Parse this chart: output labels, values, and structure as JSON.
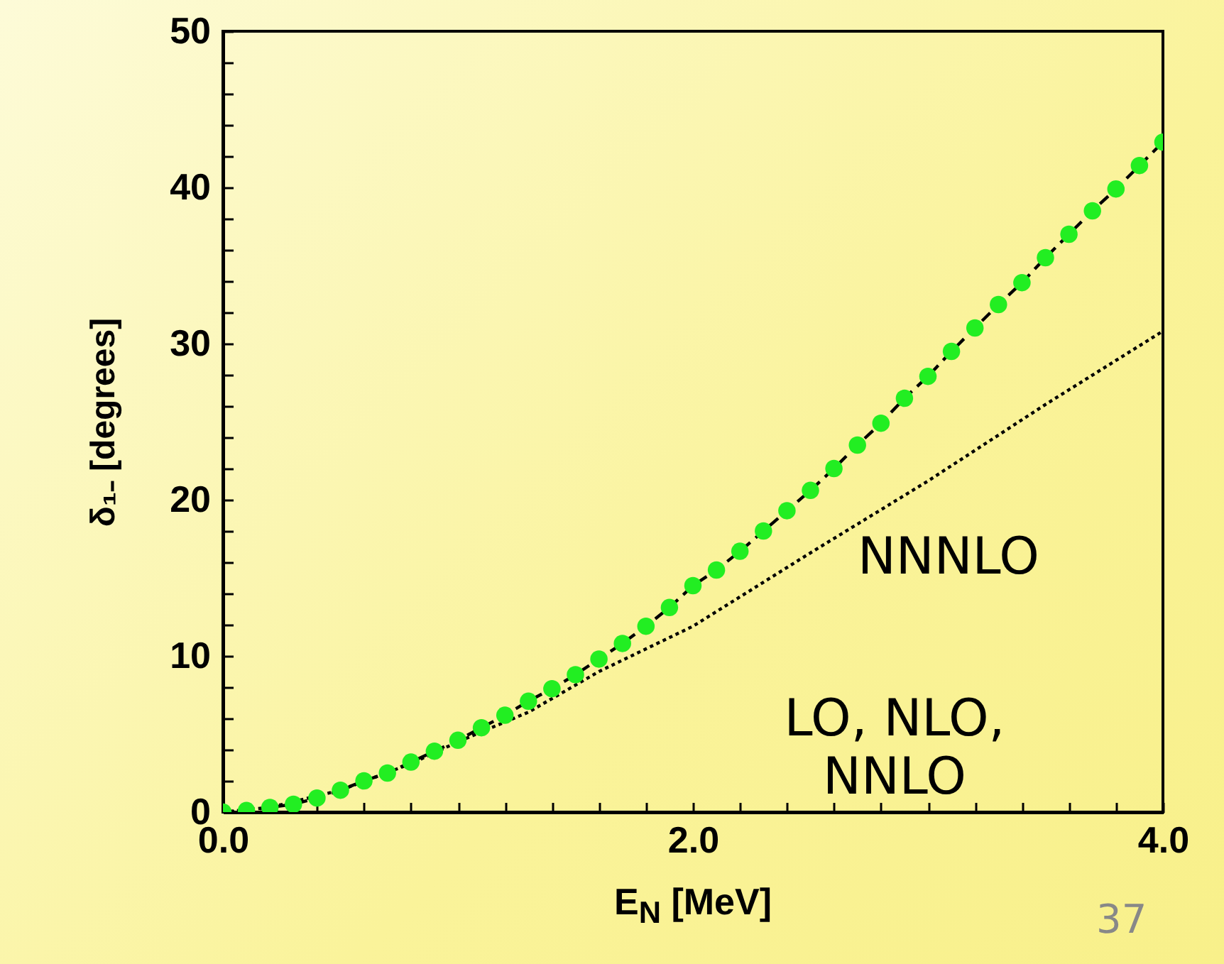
{
  "chart_data": {
    "type": "scatter",
    "xlabel": "E$_{N}$ [MeV]",
    "ylabel": "δ₁₋ [degrees]",
    "xlim": [
      0,
      4.0
    ],
    "ylim": [
      0,
      50
    ],
    "xticks": [
      {
        "value": 0,
        "label": "0.0"
      },
      {
        "value": 0.2,
        "label": null
      },
      {
        "value": 0.4,
        "label": null
      },
      {
        "value": 0.6,
        "label": null
      },
      {
        "value": 0.8,
        "label": null
      },
      {
        "value": 1.0,
        "label": null
      },
      {
        "value": 1.2,
        "label": null
      },
      {
        "value": 1.4,
        "label": null
      },
      {
        "value": 1.6,
        "label": null
      },
      {
        "value": 1.8,
        "label": null
      },
      {
        "value": 2.0,
        "label": "2.0"
      },
      {
        "value": 2.2,
        "label": null
      },
      {
        "value": 2.4,
        "label": null
      },
      {
        "value": 2.6,
        "label": null
      },
      {
        "value": 2.8,
        "label": null
      },
      {
        "value": 3.0,
        "label": null
      },
      {
        "value": 3.2,
        "label": null
      },
      {
        "value": 3.4,
        "label": null
      },
      {
        "value": 3.6,
        "label": null
      },
      {
        "value": 3.8,
        "label": null
      },
      {
        "value": 4.0,
        "label": "4.0"
      }
    ],
    "yticks": [
      0,
      {
        "value": 2,
        "label": null
      },
      {
        "value": 4,
        "label": null
      },
      {
        "value": 6,
        "label": null
      },
      {
        "value": 8,
        "label": null
      },
      10,
      {
        "value": 12,
        "label": null
      },
      {
        "value": 14,
        "label": null
      },
      {
        "value": 16,
        "label": null
      },
      {
        "value": 18,
        "label": null
      },
      20,
      {
        "value": 22,
        "label": null
      },
      {
        "value": 24,
        "label": null
      },
      {
        "value": 26,
        "label": null
      },
      {
        "value": 28,
        "label": null
      },
      30,
      {
        "value": 32,
        "label": null
      },
      {
        "value": 34,
        "label": null
      },
      {
        "value": 36,
        "label": null
      },
      {
        "value": 38,
        "label": null
      },
      40,
      {
        "value": 42,
        "label": null
      },
      {
        "value": 44,
        "label": null
      },
      {
        "value": 46,
        "label": null
      },
      {
        "value": 48,
        "label": null
      },
      50
    ],
    "grid": false,
    "x": [
      0,
      0.1,
      0.2,
      0.3,
      0.4,
      0.5,
      0.6,
      0.7,
      0.8,
      0.9,
      1.0,
      1.1,
      1.2,
      1.3,
      1.4,
      1.5,
      1.6,
      1.7,
      1.8,
      1.9,
      2.0,
      2.1,
      2.2,
      2.3,
      2.4,
      2.5,
      2.6,
      2.7,
      2.8,
      2.9,
      3.0,
      3.1,
      3.2,
      3.3,
      3.4,
      3.5,
      3.6,
      3.7,
      3.8,
      3.9,
      4.0
    ],
    "series": [
      {
        "type": "line",
        "line_style": "dotted",
        "color": "#000000",
        "x": [
          0,
          0.2,
          0.5,
          0.8,
          1.0,
          1.3,
          1.6,
          2.0,
          2.5,
          3.0,
          3.5,
          4.0
        ],
        "values": [
          0,
          0.3,
          1.4,
          3.1,
          4.5,
          6.4,
          9.0,
          11.9,
          16.6,
          21.2,
          26.1,
          30.8
        ]
      },
      {
        "type": "line",
        "line_style": "dashed",
        "color": "#000000",
        "values": [
          0,
          0.1,
          0.3,
          0.5,
          0.9,
          1.4,
          2.0,
          2.5,
          3.2,
          3.9,
          4.6,
          5.4,
          6.2,
          7.1,
          7.9,
          8.8,
          9.8,
          10.8,
          11.9,
          13.1,
          14.5,
          15.5,
          16.7,
          18.0,
          19.3,
          20.6,
          22.0,
          23.5,
          24.9,
          26.5,
          27.9,
          29.5,
          31.0,
          32.5,
          33.9,
          35.5,
          37.0,
          38.5,
          39.9,
          41.4,
          42.9
        ]
      },
      {
        "marker": "circle",
        "color": "#22ee22",
        "values": [
          0,
          0.1,
          0.3,
          0.5,
          0.9,
          1.4,
          2.0,
          2.5,
          3.2,
          3.9,
          4.6,
          5.4,
          6.2,
          7.1,
          7.9,
          8.8,
          9.8,
          10.8,
          11.9,
          13.1,
          14.5,
          15.5,
          16.7,
          18.0,
          19.3,
          20.6,
          22.0,
          23.5,
          24.9,
          26.5,
          27.9,
          29.5,
          31.0,
          32.5,
          33.9,
          35.5,
          37.0,
          38.5,
          39.9,
          41.4,
          42.9
        ]
      }
    ],
    "annotations": [
      "NNNLO",
      "LO, NLO, NNLO",
      "37"
    ]
  }
}
